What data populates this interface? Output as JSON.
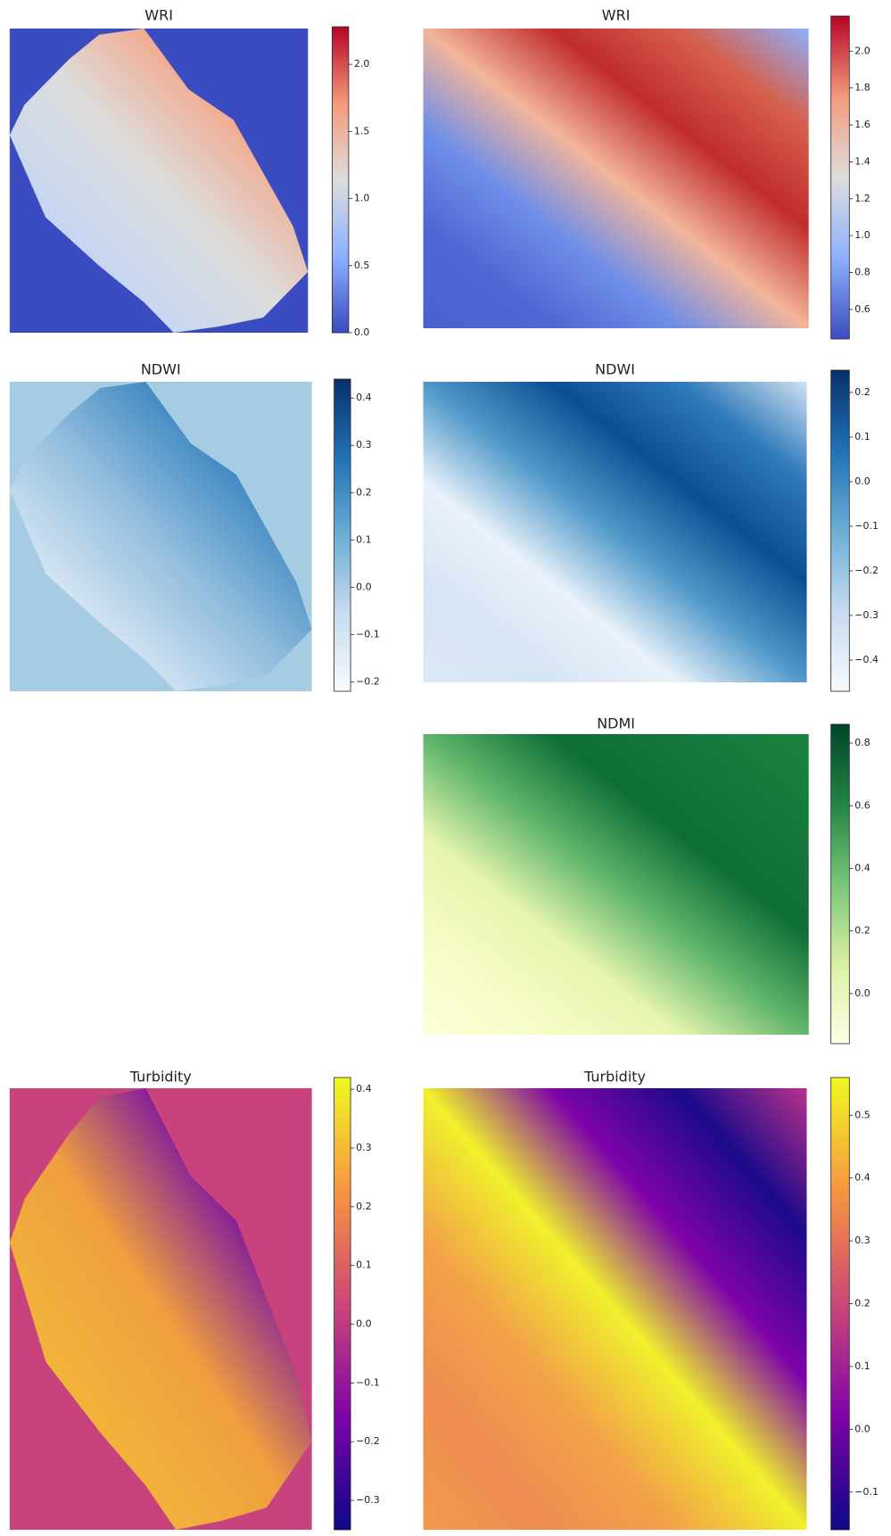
{
  "chart_data": [
    {
      "type": "heatmap",
      "title": "WRI",
      "colorbar": {
        "colors": [
          "#3b4cc0",
          "#8db0fe",
          "#dddddd",
          "#f49a7b",
          "#b40426"
        ],
        "lim": [
          0,
          2.28
        ],
        "ticks": [
          {
            "value": 0,
            "label": "0.0"
          },
          0.5,
          {
            "value": 1,
            "label": "1.0"
          },
          1.5,
          {
            "value": 2,
            "label": "2.0"
          }
        ]
      }
    },
    {
      "type": "heatmap",
      "title": "WRI",
      "colorbar": {
        "colors": [
          "#3b4cc0",
          "#8db0fe",
          "#dddddd",
          "#f49a7b",
          "#b40426"
        ],
        "lim": [
          0.44,
          2.19
        ],
        "ticks": [
          0.6,
          0.8,
          {
            "value": 1,
            "label": "1.0"
          },
          1.2,
          1.4,
          1.6,
          1.8,
          {
            "value": 2,
            "label": "2.0"
          }
        ]
      }
    },
    {
      "type": "heatmap",
      "title": "NDWI",
      "colorbar": {
        "colors": [
          "#f7fbff",
          "#c6dbef",
          "#6baed6",
          "#2171b5",
          "#08306b"
        ],
        "lim": [
          -0.22,
          0.44
        ],
        "ticks": [
          {
            "value": -0.2,
            "label": "−0.2"
          },
          {
            "value": -0.1,
            "label": "−0.1"
          },
          {
            "value": 0,
            "label": "0.0"
          },
          0.1,
          0.2,
          0.3,
          0.4
        ]
      }
    },
    {
      "type": "heatmap",
      "title": "NDWI",
      "colorbar": {
        "colors": [
          "#f7fbff",
          "#c6dbef",
          "#6baed6",
          "#2171b5",
          "#08306b"
        ],
        "lim": [
          -0.47,
          0.25
        ],
        "ticks": [
          {
            "value": -0.4,
            "label": "−0.4"
          },
          {
            "value": -0.3,
            "label": "−0.3"
          },
          {
            "value": -0.2,
            "label": "−0.2"
          },
          {
            "value": -0.1,
            "label": "−0.1"
          },
          {
            "value": 0,
            "label": "0.0"
          },
          0.1,
          0.2
        ]
      }
    },
    {
      "type": "heatmap",
      "title": "NDMI",
      "colorbar": {
        "colors": [
          "#ffffe5",
          "#d9f0a3",
          "#78c679",
          "#238443",
          "#004529"
        ],
        "lim": [
          -0.16,
          0.86
        ],
        "ticks": [
          {
            "value": 0,
            "label": "0.0"
          },
          0.2,
          0.4,
          0.6,
          0.8
        ]
      }
    },
    {
      "type": "heatmap",
      "title": "Turbidity",
      "colorbar": {
        "colors": [
          "#0d0887",
          "#7e03a8",
          "#cc4778",
          "#f89540",
          "#f0f921"
        ],
        "lim": [
          -0.35,
          0.42
        ],
        "ticks": [
          {
            "value": -0.3,
            "label": "−0.3"
          },
          {
            "value": -0.2,
            "label": "−0.2"
          },
          {
            "value": -0.1,
            "label": "−0.1"
          },
          {
            "value": 0,
            "label": "0.0"
          },
          0.1,
          0.2,
          0.3,
          0.4
        ]
      }
    },
    {
      "type": "heatmap",
      "title": "Turbidity",
      "colorbar": {
        "colors": [
          "#0d0887",
          "#7e03a8",
          "#cc4778",
          "#f89540",
          "#f0f921"
        ],
        "lim": [
          -0.16,
          0.56
        ],
        "ticks": [
          {
            "value": -0.1,
            "label": "−0.1"
          },
          {
            "value": 0,
            "label": "0.0"
          },
          0.1,
          0.2,
          0.3,
          0.4,
          0.5
        ]
      }
    }
  ]
}
